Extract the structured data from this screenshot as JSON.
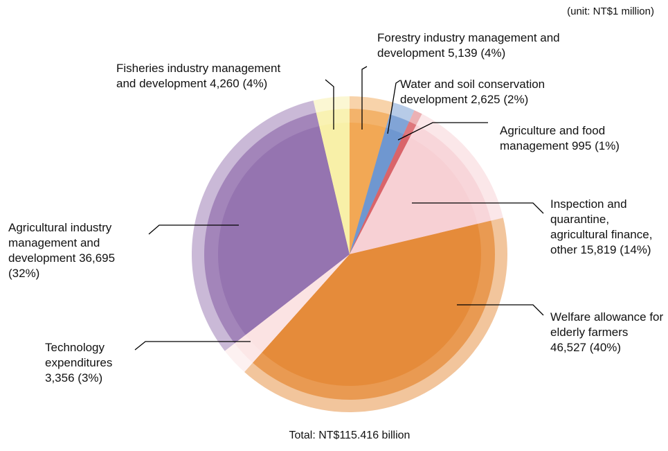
{
  "chart_data": {
    "type": "pie",
    "unit_note": "(unit: NT$1 million)",
    "total_note": "Total: NT$115.416 billion",
    "categories": [
      "Forestry industry management and development",
      "Water and soil conservation development",
      "Agriculture and food management",
      "Inspection and quarantine, agricultural finance, other",
      "Welfare allowance for elderly farmers",
      "Technology expenditures",
      "Agricultural industry management and development",
      "Fisheries industry management and development"
    ],
    "values": [
      5139,
      2625,
      995,
      15819,
      46527,
      3356,
      36695,
      4260
    ],
    "value_labels": [
      "5,139",
      "2,625",
      "995",
      "15,819",
      "46,527",
      "3,356",
      "36,695",
      "4,260"
    ],
    "percent_labels": [
      "(4%)",
      "(2%)",
      "(1%)",
      "(14%)",
      "(40%)",
      "(3%)",
      "(32%)",
      "(4%)"
    ],
    "colors": [
      "#f2a855",
      "#6f97d0",
      "#d9646a",
      "#f7d0d4",
      "#e58b3a",
      "#fbe3e3",
      "#9574b0",
      "#f8f0a8"
    ]
  }
}
